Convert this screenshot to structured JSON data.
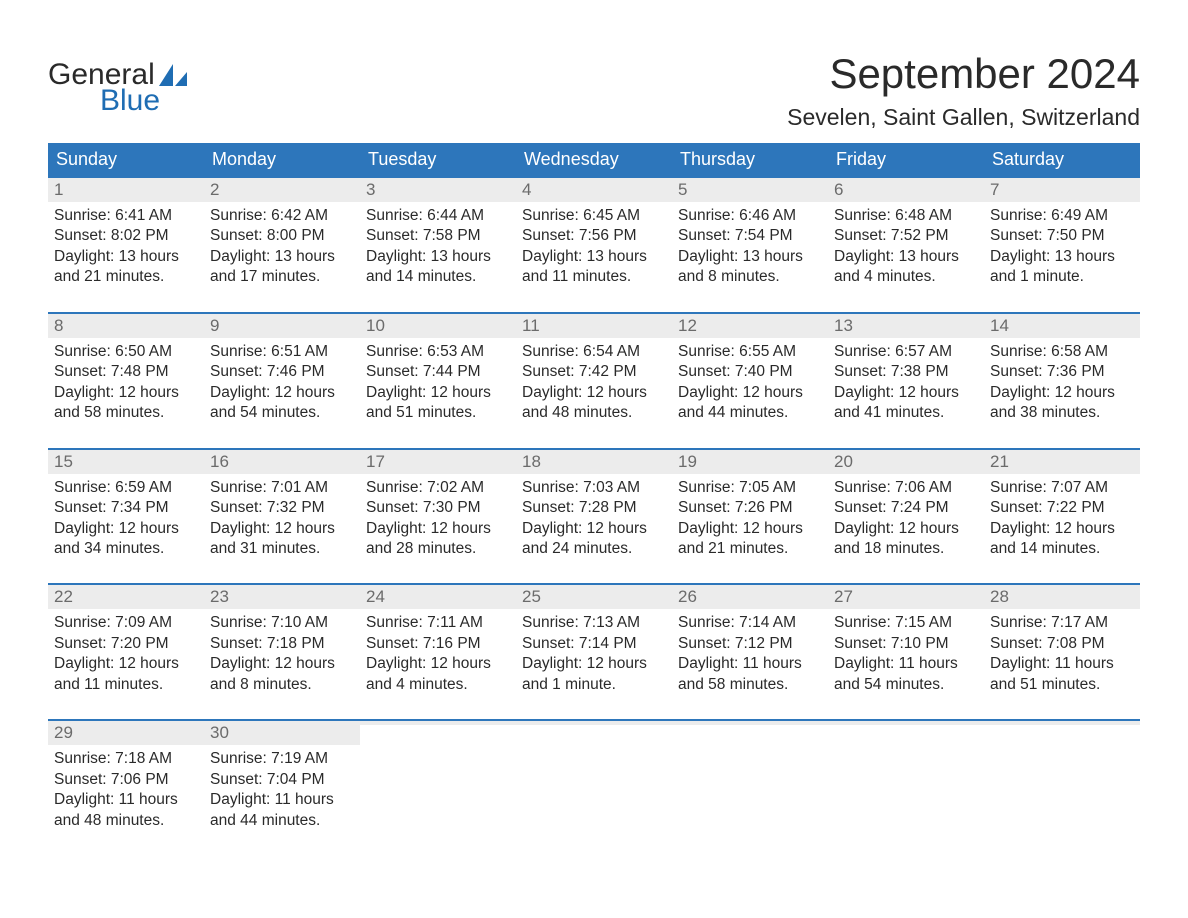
{
  "brand": {
    "word1": "General",
    "word2": "Blue",
    "sail_color": "#1f6db3",
    "text_color": "#2a2a2a"
  },
  "title": "September 2024",
  "location": "Sevelen, Saint Gallen, Switzerland",
  "colors": {
    "header_bg": "#2d76bb",
    "header_text": "#ffffff",
    "daynum_bg": "#ececec",
    "daynum_text": "#6b6b6b",
    "body_text": "#2a2a2a",
    "week_border": "#2d76bb",
    "page_bg": "#ffffff"
  },
  "typography": {
    "title_fontsize": 42,
    "location_fontsize": 23,
    "weekday_fontsize": 18,
    "daynum_fontsize": 17,
    "body_fontsize": 15.5
  },
  "weekdays": [
    "Sunday",
    "Monday",
    "Tuesday",
    "Wednesday",
    "Thursday",
    "Friday",
    "Saturday"
  ],
  "weeks": [
    [
      {
        "n": "1",
        "sunrise": "Sunrise: 6:41 AM",
        "sunset": "Sunset: 8:02 PM",
        "daylight1": "Daylight: 13 hours",
        "daylight2": "and 21 minutes."
      },
      {
        "n": "2",
        "sunrise": "Sunrise: 6:42 AM",
        "sunset": "Sunset: 8:00 PM",
        "daylight1": "Daylight: 13 hours",
        "daylight2": "and 17 minutes."
      },
      {
        "n": "3",
        "sunrise": "Sunrise: 6:44 AM",
        "sunset": "Sunset: 7:58 PM",
        "daylight1": "Daylight: 13 hours",
        "daylight2": "and 14 minutes."
      },
      {
        "n": "4",
        "sunrise": "Sunrise: 6:45 AM",
        "sunset": "Sunset: 7:56 PM",
        "daylight1": "Daylight: 13 hours",
        "daylight2": "and 11 minutes."
      },
      {
        "n": "5",
        "sunrise": "Sunrise: 6:46 AM",
        "sunset": "Sunset: 7:54 PM",
        "daylight1": "Daylight: 13 hours",
        "daylight2": "and 8 minutes."
      },
      {
        "n": "6",
        "sunrise": "Sunrise: 6:48 AM",
        "sunset": "Sunset: 7:52 PM",
        "daylight1": "Daylight: 13 hours",
        "daylight2": "and 4 minutes."
      },
      {
        "n": "7",
        "sunrise": "Sunrise: 6:49 AM",
        "sunset": "Sunset: 7:50 PM",
        "daylight1": "Daylight: 13 hours",
        "daylight2": "and 1 minute."
      }
    ],
    [
      {
        "n": "8",
        "sunrise": "Sunrise: 6:50 AM",
        "sunset": "Sunset: 7:48 PM",
        "daylight1": "Daylight: 12 hours",
        "daylight2": "and 58 minutes."
      },
      {
        "n": "9",
        "sunrise": "Sunrise: 6:51 AM",
        "sunset": "Sunset: 7:46 PM",
        "daylight1": "Daylight: 12 hours",
        "daylight2": "and 54 minutes."
      },
      {
        "n": "10",
        "sunrise": "Sunrise: 6:53 AM",
        "sunset": "Sunset: 7:44 PM",
        "daylight1": "Daylight: 12 hours",
        "daylight2": "and 51 minutes."
      },
      {
        "n": "11",
        "sunrise": "Sunrise: 6:54 AM",
        "sunset": "Sunset: 7:42 PM",
        "daylight1": "Daylight: 12 hours",
        "daylight2": "and 48 minutes."
      },
      {
        "n": "12",
        "sunrise": "Sunrise: 6:55 AM",
        "sunset": "Sunset: 7:40 PM",
        "daylight1": "Daylight: 12 hours",
        "daylight2": "and 44 minutes."
      },
      {
        "n": "13",
        "sunrise": "Sunrise: 6:57 AM",
        "sunset": "Sunset: 7:38 PM",
        "daylight1": "Daylight: 12 hours",
        "daylight2": "and 41 minutes."
      },
      {
        "n": "14",
        "sunrise": "Sunrise: 6:58 AM",
        "sunset": "Sunset: 7:36 PM",
        "daylight1": "Daylight: 12 hours",
        "daylight2": "and 38 minutes."
      }
    ],
    [
      {
        "n": "15",
        "sunrise": "Sunrise: 6:59 AM",
        "sunset": "Sunset: 7:34 PM",
        "daylight1": "Daylight: 12 hours",
        "daylight2": "and 34 minutes."
      },
      {
        "n": "16",
        "sunrise": "Sunrise: 7:01 AM",
        "sunset": "Sunset: 7:32 PM",
        "daylight1": "Daylight: 12 hours",
        "daylight2": "and 31 minutes."
      },
      {
        "n": "17",
        "sunrise": "Sunrise: 7:02 AM",
        "sunset": "Sunset: 7:30 PM",
        "daylight1": "Daylight: 12 hours",
        "daylight2": "and 28 minutes."
      },
      {
        "n": "18",
        "sunrise": "Sunrise: 7:03 AM",
        "sunset": "Sunset: 7:28 PM",
        "daylight1": "Daylight: 12 hours",
        "daylight2": "and 24 minutes."
      },
      {
        "n": "19",
        "sunrise": "Sunrise: 7:05 AM",
        "sunset": "Sunset: 7:26 PM",
        "daylight1": "Daylight: 12 hours",
        "daylight2": "and 21 minutes."
      },
      {
        "n": "20",
        "sunrise": "Sunrise: 7:06 AM",
        "sunset": "Sunset: 7:24 PM",
        "daylight1": "Daylight: 12 hours",
        "daylight2": "and 18 minutes."
      },
      {
        "n": "21",
        "sunrise": "Sunrise: 7:07 AM",
        "sunset": "Sunset: 7:22 PM",
        "daylight1": "Daylight: 12 hours",
        "daylight2": "and 14 minutes."
      }
    ],
    [
      {
        "n": "22",
        "sunrise": "Sunrise: 7:09 AM",
        "sunset": "Sunset: 7:20 PM",
        "daylight1": "Daylight: 12 hours",
        "daylight2": "and 11 minutes."
      },
      {
        "n": "23",
        "sunrise": "Sunrise: 7:10 AM",
        "sunset": "Sunset: 7:18 PM",
        "daylight1": "Daylight: 12 hours",
        "daylight2": "and 8 minutes."
      },
      {
        "n": "24",
        "sunrise": "Sunrise: 7:11 AM",
        "sunset": "Sunset: 7:16 PM",
        "daylight1": "Daylight: 12 hours",
        "daylight2": "and 4 minutes."
      },
      {
        "n": "25",
        "sunrise": "Sunrise: 7:13 AM",
        "sunset": "Sunset: 7:14 PM",
        "daylight1": "Daylight: 12 hours",
        "daylight2": "and 1 minute."
      },
      {
        "n": "26",
        "sunrise": "Sunrise: 7:14 AM",
        "sunset": "Sunset: 7:12 PM",
        "daylight1": "Daylight: 11 hours",
        "daylight2": "and 58 minutes."
      },
      {
        "n": "27",
        "sunrise": "Sunrise: 7:15 AM",
        "sunset": "Sunset: 7:10 PM",
        "daylight1": "Daylight: 11 hours",
        "daylight2": "and 54 minutes."
      },
      {
        "n": "28",
        "sunrise": "Sunrise: 7:17 AM",
        "sunset": "Sunset: 7:08 PM",
        "daylight1": "Daylight: 11 hours",
        "daylight2": "and 51 minutes."
      }
    ],
    [
      {
        "n": "29",
        "sunrise": "Sunrise: 7:18 AM",
        "sunset": "Sunset: 7:06 PM",
        "daylight1": "Daylight: 11 hours",
        "daylight2": "and 48 minutes."
      },
      {
        "n": "30",
        "sunrise": "Sunrise: 7:19 AM",
        "sunset": "Sunset: 7:04 PM",
        "daylight1": "Daylight: 11 hours",
        "daylight2": "and 44 minutes."
      },
      {
        "empty": true
      },
      {
        "empty": true
      },
      {
        "empty": true
      },
      {
        "empty": true
      },
      {
        "empty": true
      }
    ]
  ]
}
